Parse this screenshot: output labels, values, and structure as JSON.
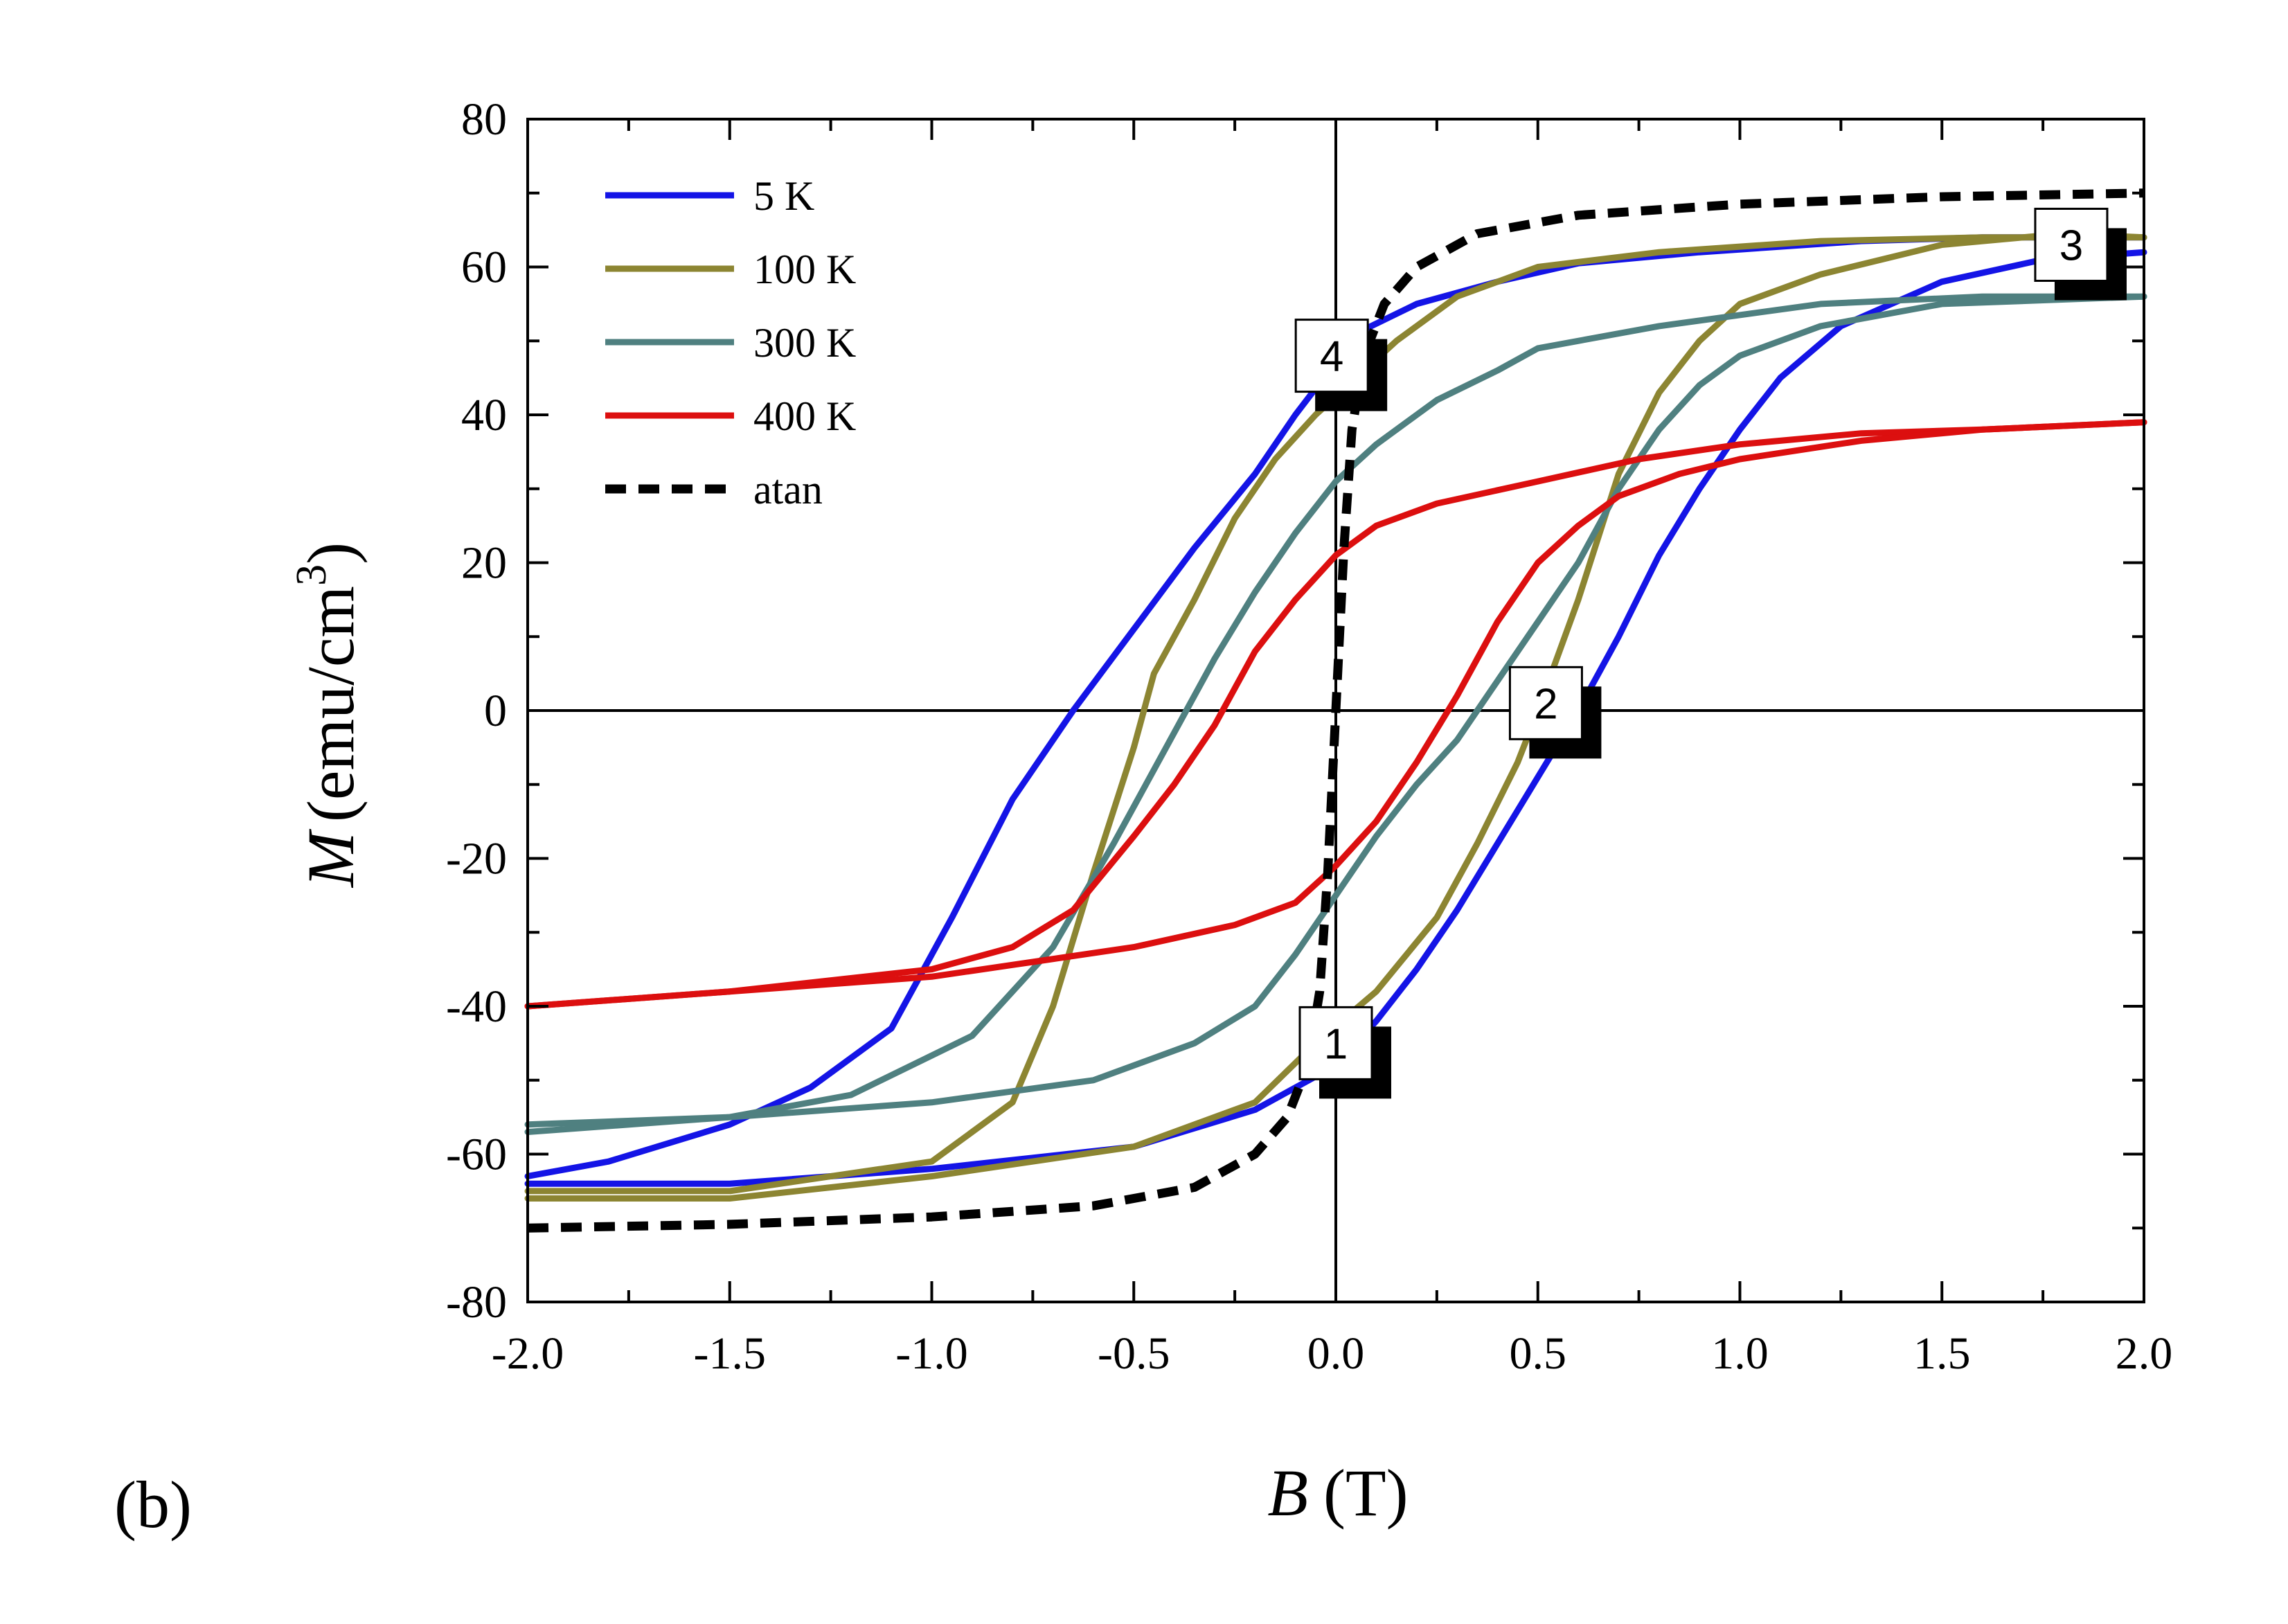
{
  "chart_data": {
    "type": "line",
    "panel_label": "(b)",
    "xlabel": {
      "symbol": "B",
      "unit": "(T)"
    },
    "ylabel": {
      "symbol": "M",
      "unit": "(emu/cm",
      "superscript": "3",
      "close": ")"
    },
    "xlim": [
      -2.0,
      2.0
    ],
    "ylim": [
      -80,
      80
    ],
    "x_ticks": [
      -2.0,
      -1.5,
      -1.0,
      -0.5,
      0.0,
      0.5,
      1.0,
      1.5,
      2.0
    ],
    "x_tick_labels": [
      "-2.0",
      "-1.5",
      "-1.0",
      "-0.5",
      "0.0",
      "0.5",
      "1.0",
      "1.5",
      "2.0"
    ],
    "y_ticks": [
      -80,
      -60,
      -40,
      -20,
      0,
      20,
      40,
      60,
      80
    ],
    "y_tick_labels": [
      "-80",
      "-60",
      "-40",
      "-20",
      "0",
      "20",
      "40",
      "60",
      "80"
    ],
    "zero_lines": true,
    "legend_position": "top-left",
    "series": [
      {
        "name": "5 K",
        "color": "#1414e6",
        "dash": "solid",
        "upper": [
          [
            -2.0,
            -63
          ],
          [
            -1.8,
            -61
          ],
          [
            -1.5,
            -56
          ],
          [
            -1.3,
            -51
          ],
          [
            -1.1,
            -43
          ],
          [
            -0.95,
            -28
          ],
          [
            -0.8,
            -12
          ],
          [
            -0.65,
            0
          ],
          [
            -0.5,
            11
          ],
          [
            -0.35,
            22
          ],
          [
            -0.2,
            32
          ],
          [
            -0.1,
            40
          ],
          [
            -0.03,
            45
          ],
          [
            0.05,
            51
          ],
          [
            0.2,
            55
          ],
          [
            0.4,
            58
          ],
          [
            0.6,
            60.5
          ],
          [
            0.9,
            62
          ],
          [
            1.3,
            63.5
          ],
          [
            1.6,
            64
          ],
          [
            2.0,
            64
          ]
        ],
        "lower": [
          [
            -2.0,
            -64
          ],
          [
            -1.5,
            -64
          ],
          [
            -1.0,
            -62
          ],
          [
            -0.5,
            -59
          ],
          [
            -0.2,
            -54
          ],
          [
            0.0,
            -48
          ],
          [
            0.1,
            -42
          ],
          [
            0.2,
            -35
          ],
          [
            0.3,
            -27
          ],
          [
            0.4,
            -18
          ],
          [
            0.5,
            -9
          ],
          [
            0.6,
            0
          ],
          [
            0.7,
            10
          ],
          [
            0.8,
            21
          ],
          [
            0.9,
            30
          ],
          [
            1.0,
            38
          ],
          [
            1.1,
            45
          ],
          [
            1.25,
            52
          ],
          [
            1.5,
            58
          ],
          [
            1.75,
            61
          ],
          [
            2.0,
            62
          ]
        ]
      },
      {
        "name": "100 K",
        "color": "#8c8532",
        "dash": "solid",
        "upper": [
          [
            -2.0,
            -65
          ],
          [
            -1.5,
            -65
          ],
          [
            -1.0,
            -61
          ],
          [
            -0.8,
            -53
          ],
          [
            -0.7,
            -40
          ],
          [
            -0.6,
            -22
          ],
          [
            -0.5,
            -5
          ],
          [
            -0.45,
            5
          ],
          [
            -0.35,
            15
          ],
          [
            -0.25,
            26
          ],
          [
            -0.15,
            34
          ],
          [
            -0.05,
            40
          ],
          [
            0.05,
            45
          ],
          [
            0.15,
            50
          ],
          [
            0.3,
            56
          ],
          [
            0.5,
            60
          ],
          [
            0.8,
            62
          ],
          [
            1.2,
            63.5
          ],
          [
            1.6,
            64
          ],
          [
            2.0,
            64
          ]
        ],
        "lower": [
          [
            -2.0,
            -66
          ],
          [
            -1.5,
            -66
          ],
          [
            -1.0,
            -63
          ],
          [
            -0.5,
            -59
          ],
          [
            -0.2,
            -53
          ],
          [
            -0.05,
            -45
          ],
          [
            0.1,
            -38
          ],
          [
            0.25,
            -28
          ],
          [
            0.35,
            -18
          ],
          [
            0.45,
            -7
          ],
          [
            0.5,
            0
          ],
          [
            0.6,
            15
          ],
          [
            0.7,
            32
          ],
          [
            0.8,
            43
          ],
          [
            0.9,
            50
          ],
          [
            1.0,
            55
          ],
          [
            1.2,
            59
          ],
          [
            1.5,
            63
          ],
          [
            1.8,
            64.5
          ],
          [
            2.0,
            64
          ]
        ]
      },
      {
        "name": "300 K",
        "color": "#4f8080",
        "dash": "solid",
        "upper": [
          [
            -2.0,
            -56
          ],
          [
            -1.5,
            -55
          ],
          [
            -1.2,
            -52
          ],
          [
            -0.9,
            -44
          ],
          [
            -0.7,
            -32
          ],
          [
            -0.55,
            -18
          ],
          [
            -0.4,
            -3
          ],
          [
            -0.3,
            7
          ],
          [
            -0.2,
            16
          ],
          [
            -0.1,
            24
          ],
          [
            0.0,
            31
          ],
          [
            0.1,
            36
          ],
          [
            0.25,
            42
          ],
          [
            0.4,
            46
          ],
          [
            0.5,
            49
          ],
          [
            0.8,
            52
          ],
          [
            1.2,
            55
          ],
          [
            1.6,
            56
          ],
          [
            2.0,
            56
          ]
        ],
        "lower": [
          [
            -2.0,
            -57
          ],
          [
            -1.5,
            -55
          ],
          [
            -1.0,
            -53
          ],
          [
            -0.6,
            -50
          ],
          [
            -0.35,
            -45
          ],
          [
            -0.2,
            -40
          ],
          [
            -0.1,
            -33
          ],
          [
            0.0,
            -25
          ],
          [
            0.1,
            -17
          ],
          [
            0.2,
            -10
          ],
          [
            0.3,
            -4
          ],
          [
            0.4,
            4
          ],
          [
            0.5,
            12
          ],
          [
            0.6,
            20
          ],
          [
            0.7,
            30
          ],
          [
            0.8,
            38
          ],
          [
            0.9,
            44
          ],
          [
            1.0,
            48
          ],
          [
            1.2,
            52
          ],
          [
            1.5,
            55
          ],
          [
            2.0,
            56
          ]
        ]
      },
      {
        "name": "400 K",
        "color": "#dc0f0f",
        "dash": "solid",
        "upper": [
          [
            -2.0,
            -40
          ],
          [
            -1.5,
            -38
          ],
          [
            -1.0,
            -35
          ],
          [
            -0.8,
            -32
          ],
          [
            -0.65,
            -27
          ],
          [
            -0.5,
            -17
          ],
          [
            -0.4,
            -10
          ],
          [
            -0.3,
            -2
          ],
          [
            -0.2,
            8
          ],
          [
            -0.1,
            15
          ],
          [
            0.0,
            21
          ],
          [
            0.1,
            25
          ],
          [
            0.25,
            28
          ],
          [
            0.5,
            31
          ],
          [
            0.75,
            34
          ],
          [
            1.0,
            36
          ],
          [
            1.3,
            37.5
          ],
          [
            1.6,
            38
          ],
          [
            2.0,
            39
          ]
        ],
        "lower": [
          [
            -2.0,
            -40
          ],
          [
            -1.5,
            -38
          ],
          [
            -1.0,
            -36
          ],
          [
            -0.75,
            -34
          ],
          [
            -0.5,
            -32
          ],
          [
            -0.25,
            -29
          ],
          [
            -0.1,
            -26
          ],
          [
            0.0,
            -21
          ],
          [
            0.1,
            -15
          ],
          [
            0.2,
            -7
          ],
          [
            0.3,
            2
          ],
          [
            0.4,
            12
          ],
          [
            0.5,
            20
          ],
          [
            0.6,
            25
          ],
          [
            0.7,
            29
          ],
          [
            0.85,
            32
          ],
          [
            1.0,
            34
          ],
          [
            1.3,
            36.5
          ],
          [
            1.6,
            38
          ],
          [
            2.0,
            39
          ]
        ]
      },
      {
        "name": "atan",
        "color": "#000000",
        "dash": "dashed",
        "points": [
          [
            -2.0,
            -70
          ],
          [
            -1.5,
            -69.5
          ],
          [
            -1.0,
            -68.5
          ],
          [
            -0.6,
            -67
          ],
          [
            -0.35,
            -64.5
          ],
          [
            -0.2,
            -60
          ],
          [
            -0.12,
            -55
          ],
          [
            -0.07,
            -48
          ],
          [
            -0.04,
            -38
          ],
          [
            -0.02,
            -22
          ],
          [
            0.0,
            0
          ],
          [
            0.02,
            22
          ],
          [
            0.04,
            38
          ],
          [
            0.07,
            48
          ],
          [
            0.12,
            55
          ],
          [
            0.2,
            60
          ],
          [
            0.35,
            64.5
          ],
          [
            0.6,
            67
          ],
          [
            1.0,
            68.5
          ],
          [
            1.5,
            69.5
          ],
          [
            2.0,
            70
          ]
        ]
      }
    ],
    "annotations": [
      {
        "label": "1",
        "x": 0.0,
        "y": -45
      },
      {
        "label": "2",
        "x": 0.52,
        "y": 1
      },
      {
        "label": "3",
        "x": 1.82,
        "y": 63
      },
      {
        "label": "4",
        "x": -0.01,
        "y": 48
      }
    ]
  }
}
